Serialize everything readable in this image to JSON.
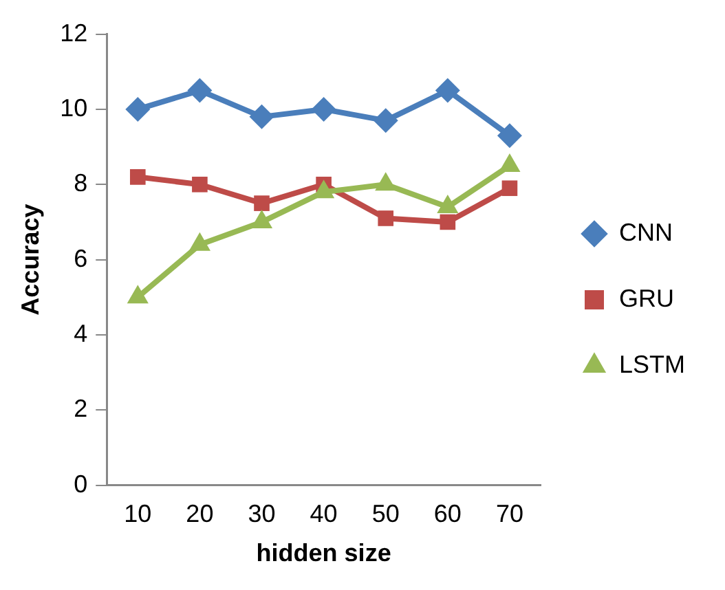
{
  "chart_data": {
    "type": "line",
    "xlabel": "hidden size",
    "ylabel": "Accuracy",
    "categories": [
      "10",
      "20",
      "30",
      "40",
      "50",
      "60",
      "70"
    ],
    "series": [
      {
        "name": "CNN",
        "color": "#4a7ebb",
        "marker": "diamond",
        "values": [
          10,
          10.5,
          9.8,
          10,
          9.7,
          10.5,
          9.3
        ]
      },
      {
        "name": "GRU",
        "color": "#be4b48",
        "marker": "square",
        "values": [
          8.2,
          8.0,
          7.5,
          8.0,
          7.1,
          7.0,
          7.9
        ]
      },
      {
        "name": "LSTM",
        "color": "#98b954",
        "marker": "triangle",
        "values": [
          5.0,
          6.4,
          7.0,
          7.8,
          8.0,
          7.4,
          8.5
        ]
      }
    ],
    "ylim": [
      0,
      12
    ],
    "yticks": [
      0,
      2,
      4,
      6,
      8,
      10,
      12
    ],
    "grid": false,
    "legend": "right"
  }
}
